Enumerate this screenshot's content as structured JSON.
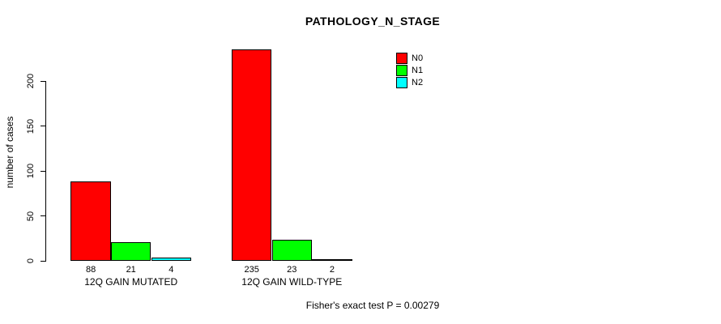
{
  "chart_data": {
    "type": "bar",
    "title": "PATHOLOGY_N_STAGE",
    "xlabel": "",
    "ylabel": "number of cases",
    "categories": [
      "12Q GAIN MUTATED",
      "12Q GAIN WILD-TYPE"
    ],
    "series": [
      {
        "name": "N0",
        "color": "#FF0000",
        "values": [
          88,
          235
        ]
      },
      {
        "name": "N1",
        "color": "#00FF00",
        "values": [
          21,
          23
        ]
      },
      {
        "name": "N2",
        "color": "#00FFFF",
        "values": [
          4,
          2
        ]
      }
    ],
    "bar_value_labels": [
      [
        88,
        21,
        4
      ],
      [
        235,
        23,
        2
      ]
    ],
    "yticks": [
      0,
      50,
      100,
      150,
      200
    ],
    "ylim": [
      0,
      200
    ],
    "grid": false,
    "legend_position": "top-right",
    "annotation": "Fisher's exact test P = 0.00279"
  }
}
